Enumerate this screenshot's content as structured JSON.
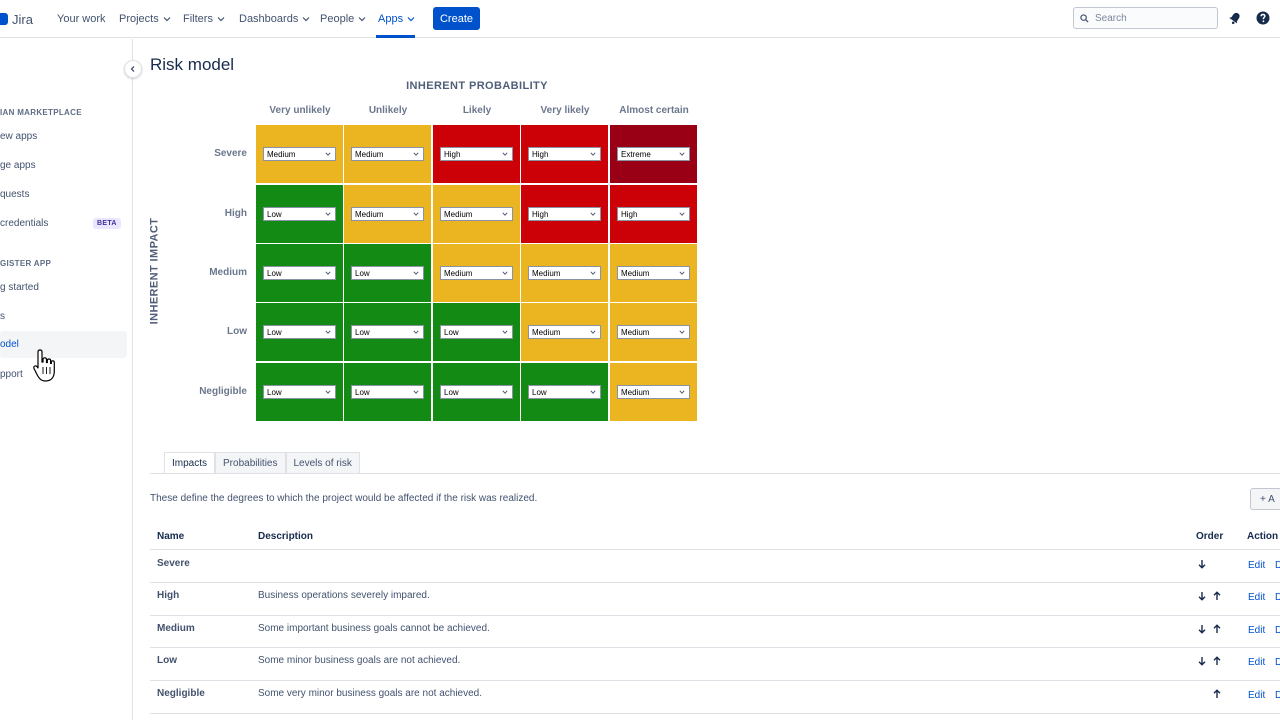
{
  "nav": {
    "logo_text": "Jira",
    "items": [
      "Your work",
      "Projects",
      "Filters",
      "Dashboards",
      "People",
      "Apps"
    ],
    "create_label": "Create",
    "search_placeholder": "Search",
    "accent": "#0052cc"
  },
  "sidebar": {
    "heading1": "IAN MARKETPLACE",
    "items1": [
      "ew apps",
      "ge apps",
      "quests",
      " credentials"
    ],
    "beta_label": "BETA",
    "heading2": "GISTER APP",
    "items2": [
      "g started",
      "s",
      "odel",
      "pport"
    ],
    "selected": "odel"
  },
  "page": {
    "title": "Risk model"
  },
  "matrix": {
    "x_title": "INHERENT PROBABILITY",
    "y_title": "INHERENT IMPACT",
    "columns": [
      "Very unlikely",
      "Unlikely",
      "Likely",
      "Very likely",
      "Almost certain"
    ],
    "rows": [
      "Severe",
      "High",
      "Medium",
      "Low",
      "Negligible"
    ],
    "cells": [
      [
        "Medium",
        "Medium",
        "High",
        "High",
        "Extreme"
      ],
      [
        "Low",
        "Medium",
        "Medium",
        "High",
        "High"
      ],
      [
        "Low",
        "Low",
        "Medium",
        "Medium",
        "Medium"
      ],
      [
        "Low",
        "Low",
        "Low",
        "Medium",
        "Medium"
      ],
      [
        "Low",
        "Low",
        "Low",
        "Low",
        "Medium"
      ]
    ],
    "level_colors": {
      "Low": "#128a14",
      "Medium": "#ebb522",
      "High": "#cc0007",
      "Extreme": "#990015"
    }
  },
  "tabs": [
    "Impacts",
    "Probabilities",
    "Levels of risk"
  ],
  "impacts": {
    "description": "These define the degrees to which the project would be affected if the risk was realized.",
    "add_label": "+ A",
    "headers": {
      "name": "Name",
      "description": "Description",
      "order": "Order",
      "actions": "Action"
    },
    "rows": [
      {
        "name": "Severe",
        "description": "",
        "down": true,
        "up": false
      },
      {
        "name": "High",
        "description": "Business operations severely impared.",
        "down": true,
        "up": true
      },
      {
        "name": "Medium",
        "description": "Some important business goals cannot be achieved.",
        "down": true,
        "up": true
      },
      {
        "name": "Low",
        "description": "Some minor business goals are not achieved.",
        "down": true,
        "up": true
      },
      {
        "name": "Negligible",
        "description": "Some very minor business goals are not achieved.",
        "down": false,
        "up": true
      }
    ],
    "edit_label": "Edit",
    "delete_label": "D"
  }
}
